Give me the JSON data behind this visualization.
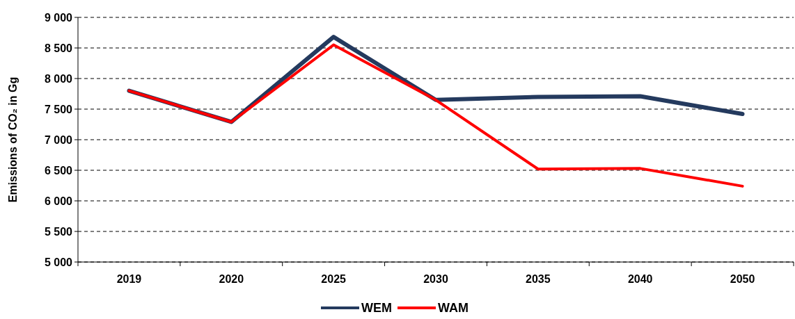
{
  "chart_data": {
    "type": "line",
    "ylabel": "Emissions of CO₂ in Gg",
    "categories": [
      "2019",
      "2020",
      "2025",
      "2030",
      "2035",
      "2040",
      "2050"
    ],
    "series": [
      {
        "name": "WEM",
        "color": "#243a5e",
        "values": [
          7800,
          7290,
          8680,
          7650,
          7700,
          7710,
          7420
        ]
      },
      {
        "name": "WAM",
        "color": "#ff0000",
        "values": [
          7800,
          7290,
          8550,
          7650,
          6520,
          6530,
          6240
        ]
      }
    ],
    "ylim": [
      5000,
      9000
    ],
    "yticks": [
      {
        "value": 5000,
        "label": "5 000"
      },
      {
        "value": 5500,
        "label": "5 500"
      },
      {
        "value": 6000,
        "label": "6 000"
      },
      {
        "value": 6500,
        "label": "6 500"
      },
      {
        "value": 7000,
        "label": "7 000"
      },
      {
        "value": 7500,
        "label": "7 500"
      },
      {
        "value": 8000,
        "label": "8 000"
      },
      {
        "value": 8500,
        "label": "8 500"
      },
      {
        "value": 9000,
        "label": "9 000"
      }
    ],
    "grid": "y",
    "legend": "bottom",
    "line_style": "solid"
  }
}
